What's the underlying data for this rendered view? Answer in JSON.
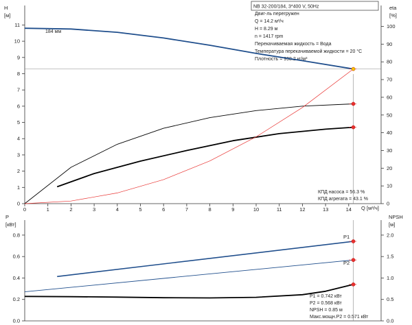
{
  "chart_data": [
    {
      "type": "line",
      "panel": "top",
      "yaxis_left": {
        "label": "H",
        "unit": "[м]",
        "ticks": [
          0,
          1,
          2,
          3,
          4,
          5,
          6,
          7,
          8,
          9,
          10,
          11
        ],
        "ylim": [
          0,
          12.2
        ]
      },
      "yaxis_right": {
        "label": "eta",
        "unit": "[%]",
        "ticks": [
          0,
          10,
          20,
          30,
          40,
          50,
          60,
          70,
          80,
          90,
          100
        ],
        "ylim": [
          0,
          111.8
        ]
      },
      "xaxis": {
        "label": "Q",
        "unit": "[м³/ч]",
        "ticks": [
          0,
          1,
          2,
          3,
          4,
          5,
          6,
          7,
          8,
          9,
          10,
          11,
          12,
          13,
          14
        ],
        "xlim": [
          0,
          15.4
        ]
      },
      "title_box": "NB 32-200/184, 3*400 V, 50Hz",
      "curve_label": "184 мм",
      "info_lines": [
        "Двиг-ль перегружен",
        "Q = 14.2 м³/ч",
        "H = 8.29 м",
        "n = 1417 rpm",
        "Перекачиваемая жидкость = Вода",
        "Температура перекачиваемой жидкости = 20 °C",
        "Плотность = 998.2 кг/м³"
      ],
      "efficiency_lines": [
        "КПД насоса = 56.3 %",
        "КПД агрегата = 43.1 %"
      ],
      "duty_point": {
        "q": 14.2,
        "h": 8.29
      },
      "series": [
        {
          "key": "H",
          "axis": "left",
          "color": "#1f4e8c",
          "width": 1.8,
          "x": [
            0,
            2,
            4,
            6,
            8,
            10,
            12,
            14.2
          ],
          "y": [
            10.8,
            10.75,
            10.55,
            10.2,
            9.75,
            9.25,
            8.8,
            8.29
          ]
        },
        {
          "key": "pump_eff",
          "axis": "right",
          "color": "#000000",
          "width": 0.9,
          "x": [
            0,
            2,
            4,
            6,
            8,
            10,
            12,
            14.2
          ],
          "y": [
            0,
            20.5,
            33.5,
            42.5,
            48.5,
            52.5,
            55,
            56.3
          ]
        },
        {
          "key": "unit_eff",
          "axis": "right",
          "color": "#000000",
          "width": 1.8,
          "x": [
            1.4,
            3,
            5,
            7,
            9,
            11,
            13,
            14.2
          ],
          "y": [
            9.5,
            17,
            24,
            30,
            35.5,
            39.5,
            42,
            43.1
          ]
        },
        {
          "key": "system",
          "axis": "left",
          "color": "#e8312f",
          "width": 0.7,
          "x": [
            0,
            2,
            4,
            6,
            8,
            10,
            12,
            14.2
          ],
          "y": [
            0,
            0.16,
            0.66,
            1.48,
            2.63,
            4.11,
            5.92,
            8.29
          ]
        }
      ],
      "markers": [
        {
          "axis": "left",
          "x": 14.2,
          "y": 8.29,
          "color": "#f5c400"
        },
        {
          "axis": "right",
          "x": 14.2,
          "y": 56.3,
          "color": "#e8312f"
        },
        {
          "axis": "right",
          "x": 14.2,
          "y": 43.1,
          "color": "#e8312f"
        }
      ]
    },
    {
      "type": "line",
      "panel": "bottom",
      "yaxis_left": {
        "label": "P",
        "unit": "[кВт]",
        "ticks": [
          0.0,
          0.2,
          0.4,
          0.6,
          0.8
        ],
        "ylim": [
          0,
          0.94
        ]
      },
      "yaxis_right": {
        "label": "NPSH",
        "unit": "[м]",
        "ticks": [
          0.0,
          0.5,
          1.0,
          1.5,
          2.0
        ],
        "ylim": [
          0,
          2.35
        ]
      },
      "labels": [
        "P1",
        "P2"
      ],
      "info_lines": [
        "P1 = 0.742 кВт",
        "P2 = 0.568 кВт",
        "NPSH = 0.85 м",
        "Макс.мощн.P2 = 0.571 кВт"
      ],
      "series": [
        {
          "key": "P1",
          "axis": "left",
          "color": "#1f4e8c",
          "width": 1.6,
          "x": [
            1.4,
            14.2
          ],
          "y": [
            0.414,
            0.742
          ]
        },
        {
          "key": "P2",
          "axis": "left",
          "color": "#1f4e8c",
          "width": 0.9,
          "x": [
            0,
            14.2
          ],
          "y": [
            0.271,
            0.568
          ]
        },
        {
          "key": "NPSH",
          "axis": "right",
          "color": "#000000",
          "width": 1.8,
          "x": [
            0,
            2,
            4,
            6,
            8,
            10,
            12,
            13,
            14.2
          ],
          "y": [
            0.57,
            0.565,
            0.555,
            0.54,
            0.535,
            0.55,
            0.61,
            0.69,
            0.85
          ]
        }
      ],
      "markers": [
        {
          "axis": "left",
          "x": 14.2,
          "y": 0.742,
          "color": "#e8312f"
        },
        {
          "axis": "left",
          "x": 14.2,
          "y": 0.568,
          "color": "#e8312f"
        },
        {
          "axis": "right",
          "x": 14.2,
          "y": 0.85,
          "color": "#e8312f"
        }
      ]
    }
  ]
}
